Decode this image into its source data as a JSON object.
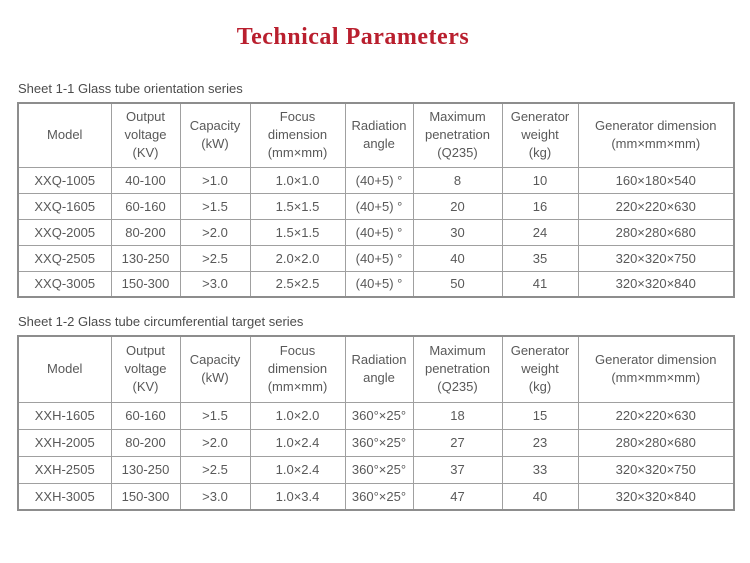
{
  "page": {
    "title": "Technical Parameters",
    "title_color": "#b91f2e",
    "text_color": "#595959",
    "border_color": "#a0a0a0"
  },
  "tables": [
    {
      "caption": "Sheet 1-1 Glass tube orientation series",
      "headers": [
        "Model",
        "Output\nvoltage\n(KV)",
        "Capacity\n(kW)",
        "Focus\ndimension\n(mm×mm)",
        "Radiation\nangle",
        "Maximum\npenetration\n(Q235)",
        "Generator\nweight\n(kg)",
        "Generator dimension\n(mm×mm×mm)"
      ],
      "rows": [
        [
          "XXQ-1005",
          "40-100",
          ">1.0",
          "1.0×1.0",
          "(40+5) °",
          "8",
          "10",
          "160×180×540"
        ],
        [
          "XXQ-1605",
          "60-160",
          ">1.5",
          "1.5×1.5",
          "(40+5) °",
          "20",
          "16",
          "220×220×630"
        ],
        [
          "XXQ-2005",
          "80-200",
          ">2.0",
          "1.5×1.5",
          "(40+5) °",
          "30",
          "24",
          "280×280×680"
        ],
        [
          "XXQ-2505",
          "130-250",
          ">2.5",
          "2.0×2.0",
          "(40+5) °",
          "40",
          "35",
          "320×320×750"
        ],
        [
          "XXQ-3005",
          "150-300",
          ">3.0",
          "2.5×2.5",
          "(40+5) °",
          "50",
          "41",
          "320×320×840"
        ]
      ]
    },
    {
      "caption": "Sheet 1-2 Glass tube circumferential target series",
      "headers": [
        "Model",
        "Output\nvoltage\n(KV)",
        "Capacity\n(kW)",
        "Focus\ndimension\n(mm×mm)",
        "Radiation\nangle",
        "Maximum\npenetration\n(Q235)",
        "Generator\nweight\n(kg)",
        "Generator dimension\n(mm×mm×mm)"
      ],
      "rows": [
        [
          "XXH-1605",
          "60-160",
          ">1.5",
          "1.0×2.0",
          "360°×25°",
          "18",
          "15",
          "220×220×630"
        ],
        [
          "XXH-2005",
          "80-200",
          ">2.0",
          "1.0×2.4",
          "360°×25°",
          "27",
          "23",
          "280×280×680"
        ],
        [
          "XXH-2505",
          "130-250",
          ">2.5",
          "1.0×2.4",
          "360°×25°",
          "37",
          "33",
          "320×320×750"
        ],
        [
          "XXH-3005",
          "150-300",
          ">3.0",
          "1.0×3.4",
          "360°×25°",
          "47",
          "40",
          "320×320×840"
        ]
      ]
    }
  ]
}
